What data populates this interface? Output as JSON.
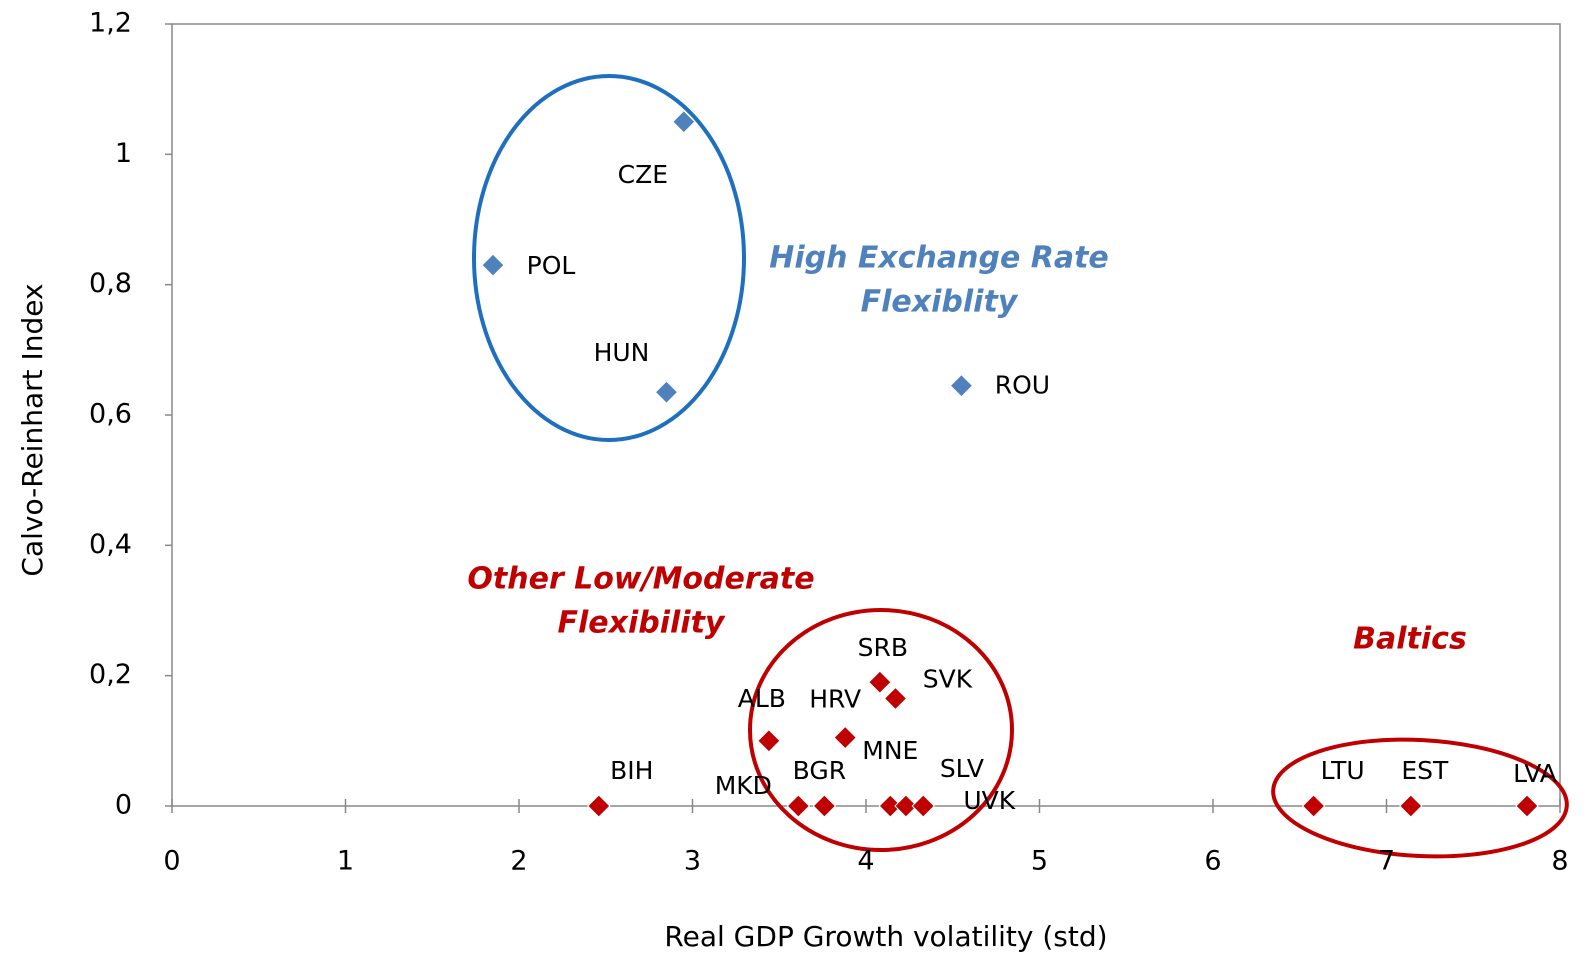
{
  "chart_data": {
    "type": "scatter",
    "x_label": "Real GDP Growth volatility (std)",
    "y_label": "Calvo-Reinhart  Index",
    "xlim": [
      0,
      8
    ],
    "ylim": [
      0,
      1.2
    ],
    "xticks": [
      0,
      1,
      2,
      3,
      4,
      5,
      6,
      7,
      8
    ],
    "yticks": [
      0,
      {
        "value": 0.2,
        "label": "0,2"
      },
      {
        "value": 0.4,
        "label": "0,4"
      },
      {
        "value": 0.6,
        "label": "0,6"
      },
      {
        "value": 0.8,
        "label": "0,8"
      },
      1,
      {
        "value": 1.2,
        "label": "1,2"
      }
    ],
    "series": [
      {
        "color": "#4f81bd",
        "labels": [
          "CZE",
          "POL",
          "HUN",
          "ROU"
        ],
        "x": [
          2.95,
          1.85,
          2.85,
          4.55
        ],
        "y": [
          1.05,
          0.83,
          0.635,
          0.645
        ]
      },
      {
        "color": "#c00000",
        "labels": [
          "BIH",
          "ALB",
          "HRV",
          "SRB",
          "SVK",
          "MKD",
          "BGR",
          "MNE",
          "SLV",
          "UVK",
          "LTU",
          "EST",
          "LVA"
        ],
        "x": [
          2.46,
          3.44,
          3.88,
          4.08,
          4.17,
          3.61,
          3.76,
          4.14,
          4.23,
          4.33,
          6.58,
          7.14,
          7.81
        ],
        "y": [
          0,
          0.1,
          0.105,
          0.19,
          0.165,
          0,
          0,
          0,
          0,
          0,
          0,
          0,
          0
        ]
      }
    ],
    "annotations": [
      {
        "color": "#4f81bd",
        "lines": [
          "High Exchange Rate",
          "Flexiblity"
        ]
      },
      {
        "color": "#c00000",
        "lines": [
          "Other Low/Moderate",
          "Flexibility"
        ]
      },
      {
        "color": "#c00000",
        "lines": [
          "Baltics"
        ]
      }
    ]
  }
}
